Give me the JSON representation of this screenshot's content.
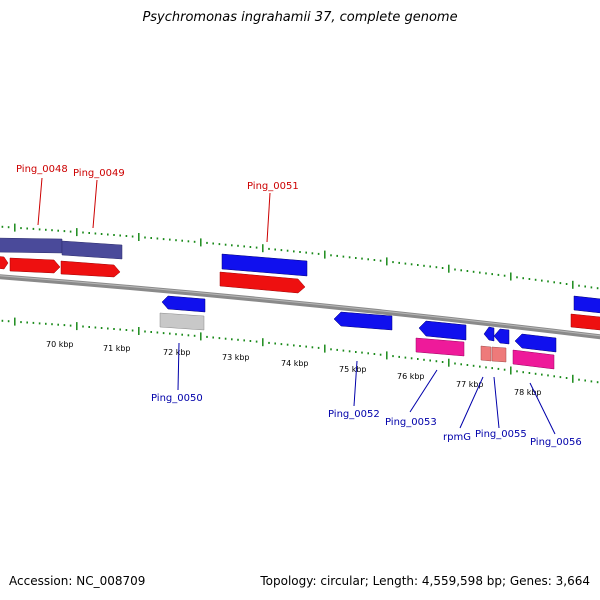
{
  "title": "Psychromonas ingrahamii 37, complete genome",
  "footer": {
    "accession": "Accession: NC_008709",
    "summary": "Topology: circular; Length: 4,559,598 bp; Genes: 3,664"
  },
  "colors": {
    "backbone": "#808080",
    "tick": "#1a8a1a",
    "upper_label": "#cc0000",
    "lower_label": "#0000aa",
    "gene_blue": "#1010ee",
    "gene_red": "#ee1010",
    "gene_purple": "#4a4a9a",
    "gene_pink": "#ee1a9a",
    "gene_gray": "#c8c8c8",
    "gene_salmon": "#ee7a7a"
  },
  "scale_labels": [
    "70 kbp",
    "71 kbp",
    "72 kbp",
    "73 kbp",
    "74 kbp",
    "75 kbp",
    "76 kbp",
    "77 kbp",
    "78 kbp"
  ],
  "upper_gene_labels": [
    "Ping_0048",
    "Ping_0049",
    "Ping_0051"
  ],
  "lower_gene_labels": [
    "Ping_0050",
    "Ping_0052",
    "Ping_0053",
    "rpmG",
    "Ping_0055",
    "Ping_0056"
  ]
}
